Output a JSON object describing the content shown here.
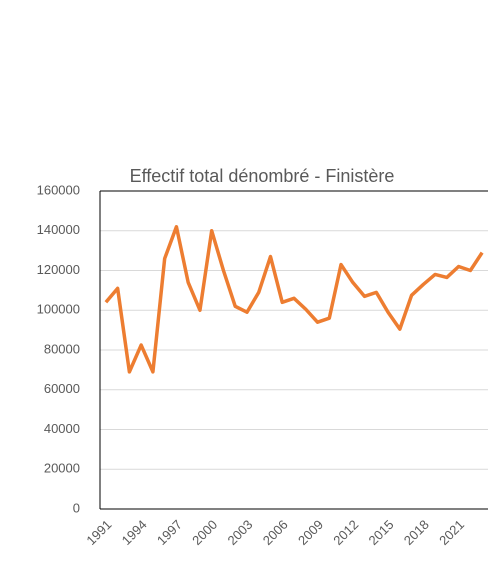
{
  "chart_data": {
    "type": "line",
    "title": "Effectif total dénombré - Finistère",
    "categories": [
      "1991",
      null,
      null,
      "1994",
      null,
      null,
      "1997",
      null,
      null,
      "2000",
      null,
      null,
      "2003",
      null,
      null,
      "2006",
      null,
      null,
      "2009",
      null,
      null,
      "2012",
      null,
      null,
      "2015",
      null,
      null,
      "2018",
      null,
      null,
      "2021",
      null,
      null
    ],
    "series": [
      {
        "name": "Effectif total dénombré",
        "color": "#ed7d31",
        "values": [
          104000,
          111000,
          69000,
          82500,
          69000,
          126000,
          142000,
          114000,
          100000,
          140000,
          120000,
          102000,
          99000,
          109000,
          127000,
          104000,
          106000,
          100500,
          94000,
          96000,
          123000,
          114000,
          107000,
          109000,
          99000,
          90500,
          107500,
          113000,
          118000,
          116500,
          122000,
          120000,
          129000
        ]
      }
    ],
    "ylim": [
      0,
      160000
    ],
    "yticks": [
      0,
      20000,
      40000,
      60000,
      80000,
      100000,
      120000,
      140000,
      160000
    ],
    "grid": true
  }
}
